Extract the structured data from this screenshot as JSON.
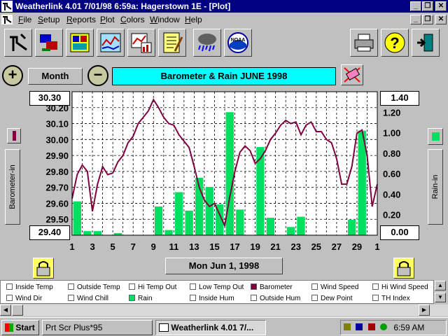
{
  "window": {
    "title": "Weatherlink 4.01   7/01/98   6:59a: Hagerstown 1E - [Plot]"
  },
  "menu": [
    {
      "pre": "",
      "u": "F",
      "post": "ile"
    },
    {
      "pre": "",
      "u": "S",
      "post": "etup"
    },
    {
      "pre": "",
      "u": "R",
      "post": "eports"
    },
    {
      "pre": "",
      "u": "P",
      "post": "lot"
    },
    {
      "pre": "",
      "u": "C",
      "post": "olors"
    },
    {
      "pre": "",
      "u": "W",
      "post": "indow"
    },
    {
      "pre": "",
      "u": "H",
      "post": "elp"
    }
  ],
  "toolbar_icons": [
    "download-icon",
    "connect-icon",
    "station-icon",
    "plot-icon",
    "chart-icon",
    "notes-icon",
    "storm-icon",
    "noaa-icon",
    "printer-icon",
    "help-icon",
    "exit-icon"
  ],
  "controls": {
    "zoom_in": "+",
    "zoom_out": "−",
    "period_label": "Month",
    "plot_title": "Barometer & Rain  JUNE 1998",
    "date_label": "Mon Jun 1, 1998"
  },
  "axes": {
    "left_label": "Barometer-in",
    "right_label": "Rain-in",
    "left_top": "30.30",
    "left_bottom": "29.40",
    "right_top": "1.40",
    "right_bottom": "0.00",
    "left_ticks": [
      "30.20",
      "30.10",
      "30.00",
      "29.90",
      "29.80",
      "29.70",
      "29.60",
      "29.50"
    ],
    "right_ticks": [
      "1.20",
      "1.00",
      "0.80",
      "0.60",
      "0.40",
      "0.20"
    ],
    "x_ticks": [
      "1",
      "3",
      "5",
      "7",
      "9",
      "11",
      "13",
      "15",
      "17",
      "19",
      "21",
      "23",
      "25",
      "27",
      "29",
      "1"
    ]
  },
  "legend": {
    "row1": [
      "Inside Temp",
      "Outside Temp",
      "Hi Temp Out",
      "Low Temp Out",
      "Barometer",
      "Wind Speed",
      "Hi Wind Speed"
    ],
    "row2": [
      "Wind Dir",
      "Wind Chill",
      "Rain",
      "Inside Hum",
      "Outside Hum",
      "Dew Point",
      "TH Index"
    ],
    "checked_barometer_color": "#800040",
    "checked_rain_color": "#00e060"
  },
  "chart_data": {
    "type": "bar+line",
    "x_axis": {
      "range": [
        1,
        31
      ],
      "ticks": [
        "1",
        "3",
        "5",
        "7",
        "9",
        "11",
        "13",
        "15",
        "17",
        "19",
        "21",
        "23",
        "25",
        "27",
        "29",
        "1"
      ]
    },
    "barometer": {
      "ylim": [
        29.4,
        30.3
      ],
      "color": "#800040",
      "x": [
        1,
        1.5,
        2,
        2.5,
        3,
        3.5,
        4,
        4.5,
        5,
        5.5,
        6,
        6.5,
        7,
        7.5,
        8,
        8.5,
        9,
        9.5,
        10,
        10.5,
        11,
        11.5,
        12,
        12.5,
        13,
        13.5,
        14,
        14.5,
        15,
        15.5,
        16,
        16.5,
        17,
        17.5,
        18,
        18.5,
        19,
        19.5,
        20,
        20.5,
        21,
        21.5,
        22,
        22.5,
        23,
        23.5,
        24,
        24.5,
        25,
        25.5,
        26,
        26.5,
        27,
        27.5,
        28,
        28.5,
        29,
        29.5,
        30,
        30.5,
        31
      ],
      "y": [
        29.63,
        29.78,
        29.84,
        29.8,
        29.55,
        29.72,
        29.83,
        29.78,
        29.79,
        29.86,
        29.9,
        29.98,
        30.02,
        30.1,
        30.14,
        30.18,
        30.25,
        30.2,
        30.14,
        30.1,
        30.09,
        30.03,
        29.99,
        29.95,
        29.83,
        29.7,
        29.62,
        29.58,
        29.6,
        29.53,
        29.46,
        29.64,
        29.8,
        29.92,
        29.96,
        29.93,
        29.85,
        29.88,
        29.93,
        30.0,
        30.04,
        30.09,
        30.12,
        30.1,
        30.11,
        30.03,
        30.09,
        30.11,
        30.05,
        30.05,
        30.0,
        29.98,
        29.88,
        29.72,
        29.72,
        29.83,
        30.04,
        30.06,
        29.9,
        29.58,
        29.72
      ]
    },
    "rain": {
      "ylim": [
        0,
        1.4
      ],
      "color": "#00e060",
      "days": [
        1,
        2,
        3,
        4,
        5,
        6,
        7,
        8,
        9,
        10,
        11,
        12,
        13,
        14,
        15,
        16,
        17,
        18,
        19,
        20,
        21,
        22,
        23,
        24,
        25,
        26,
        27,
        28,
        29,
        30
      ],
      "values": [
        0.33,
        0.04,
        0.04,
        0,
        0.02,
        0,
        0,
        0,
        0.28,
        0.05,
        0.42,
        0.24,
        0.56,
        0.47,
        0.3,
        1.2,
        0.25,
        0,
        0.86,
        0.17,
        0,
        0.08,
        0.18,
        0,
        0,
        0,
        0,
        0.15,
        1.02,
        0
      ]
    }
  },
  "taskbar": {
    "start": "Start",
    "task1": "Prt Scr Plus*95",
    "task2": "Weatherlink  4.01    7/...",
    "clock": "6:59 AM"
  }
}
